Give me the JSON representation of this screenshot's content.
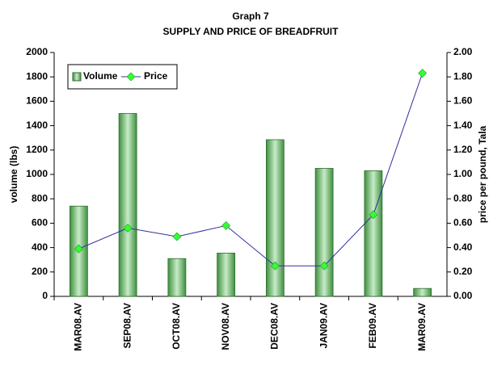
{
  "chart_data": {
    "type": "bar_line",
    "title": "Graph 7",
    "subtitle": "SUPPLY AND PRICE OF BREADFRUIT",
    "ylabel": "volume (lbs)",
    "y2label": "price per pound, Tala",
    "categories": [
      "MAR08.AV",
      "SEP08.AV",
      "OCT08.AV",
      "NOV08.AV",
      "DEC08.AV",
      "JAN09.AV",
      "FEB09.AV",
      "MAR09.AV"
    ],
    "series": [
      {
        "name": "Volume",
        "type": "bar",
        "color": "#5aa85a",
        "values": [
          740,
          1500,
          310,
          355,
          1285,
          1050,
          1030,
          65
        ]
      },
      {
        "name": "Price",
        "type": "line",
        "axis": "y2",
        "color": "#3030a0",
        "marker_color": "#33ff33",
        "values": [
          0.39,
          0.56,
          0.49,
          0.58,
          0.25,
          0.25,
          0.67,
          1.83
        ]
      }
    ],
    "ylim": [
      0,
      2000
    ],
    "yticks": [
      0,
      200,
      400,
      600,
      800,
      1000,
      1200,
      1400,
      1600,
      1800,
      2000
    ],
    "y2lim": [
      0,
      2
    ],
    "y2ticks": [
      {
        "value": 0,
        "label": "0.00"
      },
      {
        "value": 0.2,
        "label": "0.20"
      },
      {
        "value": 0.4,
        "label": "0.40"
      },
      {
        "value": 0.6,
        "label": "0.60"
      },
      {
        "value": 0.8,
        "label": "0.80"
      },
      {
        "value": 1,
        "label": "1.00"
      },
      {
        "value": 1.2,
        "label": "1.20"
      },
      {
        "value": 1.4,
        "label": "1.40"
      },
      {
        "value": 1.6,
        "label": "1.60"
      },
      {
        "value": 1.8,
        "label": "1.80"
      },
      {
        "value": 2,
        "label": "2.00"
      }
    ],
    "legend": "top-left"
  }
}
